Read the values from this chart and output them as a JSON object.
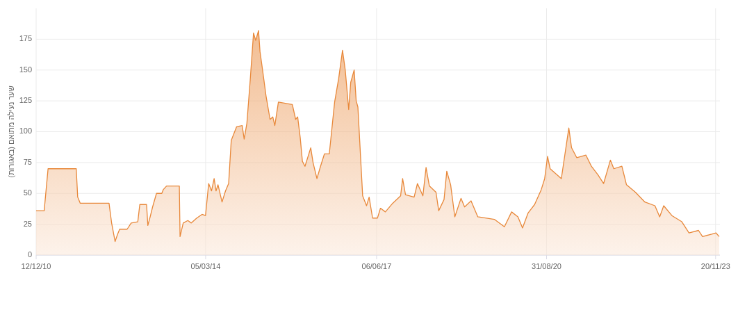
{
  "chart_data": {
    "type": "area",
    "ylabel": "שער נעילה מתואם (באגורות)",
    "x": [
      "2010-12-12",
      "2011-02-06",
      "2011-02-21",
      "2011-03-05",
      "2011-09-17",
      "2011-09-27",
      "2011-10-15",
      "2012-05-02",
      "2012-05-20",
      "2012-06-13",
      "2012-07-01",
      "2012-07-15",
      "2012-09-05",
      "2012-10-03",
      "2012-11-18",
      "2012-12-02",
      "2013-01-18",
      "2013-01-27",
      "2013-02-12",
      "2013-03-01",
      "2013-03-28",
      "2013-05-04",
      "2013-05-14",
      "2013-06-06",
      "2013-09-03",
      "2013-09-08",
      "2013-09-30",
      "2013-11-01",
      "2013-11-25",
      "2014-01-02",
      "2014-02-08",
      "2014-03-04",
      "2014-03-26",
      "2014-04-15",
      "2014-05-03",
      "2014-05-16",
      "2014-05-30",
      "2014-06-27",
      "2014-07-21",
      "2014-08-12",
      "2014-08-30",
      "2014-10-06",
      "2014-11-14",
      "2014-11-28",
      "2014-12-17",
      "2015-01-09",
      "2015-02-01",
      "2015-02-16",
      "2015-03-08",
      "2015-03-18",
      "2015-04-05",
      "2015-04-29",
      "2015-05-27",
      "2015-06-15",
      "2015-06-29",
      "2015-07-24",
      "2015-10-29",
      "2015-11-21",
      "2015-12-05",
      "2015-12-23",
      "2016-01-07",
      "2016-01-25",
      "2016-03-05",
      "2016-03-21",
      "2016-04-17",
      "2016-05-12",
      "2016-06-08",
      "2016-07-12",
      "2016-08-18",
      "2016-09-15",
      "2016-10-12",
      "2016-10-31",
      "2016-11-24",
      "2016-12-08",
      "2017-01-01",
      "2017-01-15",
      "2017-01-27",
      "2017-03-01",
      "2017-03-28",
      "2017-04-15",
      "2017-05-09",
      "2017-06-12",
      "2017-07-03",
      "2017-08-06",
      "2017-09-26",
      "2017-11-20",
      "2017-12-04",
      "2017-12-24",
      "2018-02-22",
      "2018-03-17",
      "2018-04-24",
      "2018-05-16",
      "2018-06-08",
      "2018-07-24",
      "2018-08-12",
      "2018-09-18",
      "2018-10-07",
      "2018-11-03",
      "2018-12-02",
      "2019-01-14",
      "2019-02-08",
      "2019-03-25",
      "2019-05-11",
      "2019-09-03",
      "2019-11-12",
      "2020-01-01",
      "2020-02-14",
      "2020-03-17",
      "2020-04-24",
      "2020-06-09",
      "2020-07-25",
      "2020-08-18",
      "2020-09-07",
      "2020-09-25",
      "2020-12-12",
      "2021-01-05",
      "2021-02-02",
      "2021-02-21",
      "2021-03-29",
      "2021-06-01",
      "2021-07-09",
      "2021-08-24",
      "2021-10-02",
      "2021-11-18",
      "2021-12-12",
      "2022-02-06",
      "2022-03-10",
      "2022-05-11",
      "2022-07-16",
      "2022-09-24",
      "2022-10-27",
      "2022-11-24",
      "2023-01-20",
      "2023-03-30",
      "2023-05-19",
      "2023-07-24",
      "2023-08-21",
      "2023-10-24",
      "2023-11-22",
      "2023-12-15"
    ],
    "values": [
      36,
      36,
      55,
      70,
      70,
      47,
      42,
      42,
      26,
      11,
      17,
      21,
      21,
      26,
      27,
      41,
      41,
      24,
      31,
      39,
      50,
      50,
      53,
      56,
      56,
      15,
      26,
      28,
      26,
      30,
      33,
      32,
      58,
      52,
      62,
      52,
      57,
      43,
      52,
      58,
      93,
      104,
      105,
      94,
      107,
      142,
      180,
      174,
      182,
      165,
      150,
      129,
      110,
      112,
      105,
      124,
      122,
      110,
      112,
      95,
      76,
      72,
      87,
      75,
      62,
      72,
      82,
      82,
      124,
      143,
      166,
      150,
      118,
      140,
      150,
      125,
      120,
      48,
      40,
      47,
      30,
      30,
      38,
      35,
      42,
      48,
      62,
      49,
      47,
      58,
      48,
      71,
      56,
      51,
      36,
      45,
      68,
      57,
      31,
      46,
      39,
      44,
      31,
      29,
      23,
      35,
      31,
      22,
      34,
      41,
      53,
      62,
      80,
      70,
      62,
      81,
      103,
      87,
      79,
      81,
      72,
      65,
      58,
      77,
      70,
      72,
      57,
      51,
      43,
      40,
      31,
      40,
      32,
      27,
      18,
      20,
      15,
      17,
      18,
      15
    ],
    "color": "#e8883a",
    "xlim": [
      "2010-12-12",
      "2023-12-20"
    ],
    "xticks": [
      {
        "value": "2010-12-12",
        "label": "12/12/10"
      },
      {
        "value": "2014-03-05",
        "label": "05/03/14"
      },
      {
        "value": "2017-06-06",
        "label": "06/06/17"
      },
      {
        "value": "2020-08-31",
        "label": "31/08/20"
      },
      {
        "value": "2023-11-20",
        "label": "20/11/23"
      }
    ],
    "ylim": [
      0,
      200
    ],
    "yticks": [
      0,
      25,
      50,
      75,
      100,
      125,
      150,
      175
    ],
    "grid": true
  }
}
